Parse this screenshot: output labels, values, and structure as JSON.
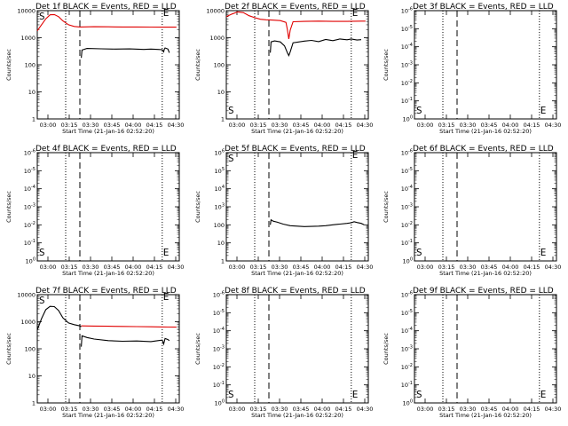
{
  "colors": {
    "events": "#000000",
    "lld": "#e00000",
    "background": "#ffffff",
    "axes": "#000000"
  },
  "chart_data": [
    {
      "type": "line",
      "title": "Det 1f BLACK = Events, RED = LLD",
      "xlabel": "Start Time (21-Jan-16 02:52:20)",
      "ylabel": "Counts/sec",
      "xticks": [
        "03:00",
        "03:15",
        "03:30",
        "03:45",
        "04:00",
        "04:15",
        "04:30"
      ],
      "yscale": "log",
      "ylim": [
        1,
        10000
      ],
      "yticks": [
        "1",
        "10",
        "100",
        "1000",
        "10000"
      ],
      "xlim_minutes": [
        0,
        100
      ],
      "dotted_lines": [
        20,
        88
      ],
      "dashed_line": [
        30
      ],
      "markers": {
        "start": "S",
        "end": "E"
      },
      "series": [
        {
          "color": "red",
          "points": [
            [
              0,
              1800
            ],
            [
              3,
              3000
            ],
            [
              6,
              5000
            ],
            [
              9,
              7000
            ],
            [
              12,
              7200
            ],
            [
              15,
              6000
            ],
            [
              18,
              4200
            ],
            [
              22,
              3000
            ],
            [
              26,
              2600
            ],
            [
              30,
              2500
            ],
            [
              40,
              2550
            ],
            [
              50,
              2530
            ],
            [
              60,
              2500
            ],
            [
              70,
              2500
            ],
            [
              80,
              2480
            ],
            [
              88,
              2450
            ],
            [
              92,
              2450
            ],
            [
              98,
              2450
            ]
          ]
        },
        {
          "color": "black",
          "points": [
            [
              31,
              180
            ],
            [
              31.5,
              350
            ],
            [
              35,
              400
            ],
            [
              45,
              390
            ],
            [
              55,
              380
            ],
            [
              65,
              385
            ],
            [
              75,
              370
            ],
            [
              80,
              380
            ],
            [
              85,
              370
            ],
            [
              88,
              360
            ],
            [
              89,
              300
            ],
            [
              89.5,
              380
            ],
            [
              90,
              420
            ],
            [
              91,
              400
            ],
            [
              92,
              380
            ],
            [
              93,
              280
            ]
          ]
        }
      ]
    },
    {
      "type": "line",
      "title": "Det 2f BLACK = Events, RED = LLD",
      "xlabel": "Start Time (21-Jan-16 02:52:20)",
      "ylabel": "Counts/sec",
      "xticks": [
        "03:00",
        "03:15",
        "03:30",
        "03:45",
        "04:00",
        "04:15",
        "04:30"
      ],
      "yscale": "log",
      "ylim": [
        1,
        10000
      ],
      "yticks": [
        "1",
        "10",
        "100",
        "1000",
        "10000"
      ],
      "xlim_minutes": [
        0,
        100
      ],
      "dotted_lines": [
        20,
        88
      ],
      "dashed_line": [
        30
      ],
      "markers": {
        "start": "S",
        "end": "E"
      },
      "series": [
        {
          "color": "red",
          "points": [
            [
              0,
              6000
            ],
            [
              4,
              7500
            ],
            [
              8,
              9000
            ],
            [
              12,
              8500
            ],
            [
              16,
              6500
            ],
            [
              20,
              5500
            ],
            [
              24,
              4800
            ],
            [
              28,
              4600
            ],
            [
              32,
              4500
            ],
            [
              38,
              4300
            ],
            [
              42,
              3700
            ],
            [
              43,
              2000
            ],
            [
              44,
              900
            ],
            [
              45,
              1900
            ],
            [
              47,
              3900
            ],
            [
              55,
              4000
            ],
            [
              65,
              4100
            ],
            [
              75,
              4000
            ],
            [
              85,
              4000
            ],
            [
              95,
              4100
            ],
            [
              98,
              4100
            ]
          ]
        },
        {
          "color": "black",
          "points": [
            [
              31,
              280
            ],
            [
              31.5,
              700
            ],
            [
              34,
              760
            ],
            [
              38,
              700
            ],
            [
              41,
              500
            ],
            [
              43,
              280
            ],
            [
              44,
              220
            ],
            [
              45,
              300
            ],
            [
              47,
              650
            ],
            [
              55,
              750
            ],
            [
              60,
              800
            ],
            [
              65,
              720
            ],
            [
              70,
              860
            ],
            [
              75,
              780
            ],
            [
              80,
              900
            ],
            [
              85,
              840
            ],
            [
              88,
              900
            ],
            [
              92,
              820
            ],
            [
              95,
              850
            ]
          ]
        }
      ]
    },
    {
      "type": "line",
      "title": "Det 3f BLACK = Events, RED = LLD",
      "xlabel": "Start Time (21-Jan-16 02:52:20)",
      "ylabel": "Counts/sec",
      "xticks": [
        "03:00",
        "03:15",
        "03:30",
        "03:45",
        "04:00",
        "04:15",
        "04:30"
      ],
      "yscale": "log",
      "ylim": [
        1e-06,
        1
      ],
      "yticks": [
        "10^0",
        "10^-1",
        "10^-2",
        "10^-3",
        "10^-4",
        "10^-5",
        "10^-6"
      ],
      "xlim_minutes": [
        0,
        100
      ],
      "dotted_lines": [
        20,
        88
      ],
      "dashed_line": [
        30
      ],
      "markers": {
        "start": "S",
        "end": "E"
      },
      "series": []
    },
    {
      "type": "line",
      "title": "Det 4f BLACK = Events, RED = LLD",
      "xlabel": "Start Time (21-Jan-16 02:52:20)",
      "ylabel": "Counts/sec",
      "xticks": [
        "03:00",
        "03:15",
        "03:30",
        "03:45",
        "04:00",
        "04:15",
        "04:30"
      ],
      "yscale": "log",
      "ylim": [
        1e-06,
        1
      ],
      "yticks": [
        "10^0",
        "10^-1",
        "10^-2",
        "10^-3",
        "10^-4",
        "10^-5",
        "10^-6"
      ],
      "xlim_minutes": [
        0,
        100
      ],
      "dotted_lines": [
        20,
        88
      ],
      "dashed_line": [
        30
      ],
      "markers": {
        "start": "S",
        "end": "E"
      },
      "series": []
    },
    {
      "type": "line",
      "title": "Det 5f BLACK = Events, RED = LLD",
      "xlabel": "Start Time (21-Jan-16 02:52:20)",
      "ylabel": "Counts/sec",
      "xticks": [
        "03:00",
        "03:15",
        "03:30",
        "03:45",
        "04:00",
        "04:15",
        "04:30"
      ],
      "yscale": "log",
      "ylim": [
        1,
        1000000
      ],
      "yticks": [
        "1",
        "10",
        "100",
        "10^3",
        "10^4",
        "10^5",
        "10^6"
      ],
      "xlim_minutes": [
        0,
        100
      ],
      "dotted_lines": [
        20,
        88
      ],
      "dashed_line": [
        30
      ],
      "markers": {
        "start": "S",
        "end": "E"
      },
      "series": [
        {
          "color": "black",
          "points": [
            [
              31,
              100
            ],
            [
              31.5,
              190
            ],
            [
              33,
              160
            ],
            [
              36,
              140
            ],
            [
              40,
              110
            ],
            [
              45,
              90
            ],
            [
              50,
              85
            ],
            [
              55,
              80
            ],
            [
              60,
              82
            ],
            [
              65,
              85
            ],
            [
              70,
              90
            ],
            [
              75,
              100
            ],
            [
              80,
              110
            ],
            [
              85,
              120
            ],
            [
              88,
              130
            ],
            [
              90,
              150
            ],
            [
              92,
              135
            ],
            [
              95,
              120
            ],
            [
              97,
              100
            ]
          ]
        }
      ]
    },
    {
      "type": "line",
      "title": "Det 6f BLACK = Events, RED = LLD",
      "xlabel": "Start Time (21-Jan-16 02:52:20)",
      "ylabel": "Counts/sec",
      "xticks": [
        "03:00",
        "03:15",
        "03:30",
        "03:45",
        "04:00",
        "04:15",
        "04:30"
      ],
      "yscale": "log",
      "ylim": [
        1e-06,
        1
      ],
      "yticks": [
        "10^0",
        "10^-1",
        "10^-2",
        "10^-3",
        "10^-4",
        "10^-5",
        "10^-6"
      ],
      "xlim_minutes": [
        0,
        100
      ],
      "dotted_lines": [
        20,
        88
      ],
      "dashed_line": [
        30
      ],
      "markers": {
        "start": "S",
        "end": "E"
      },
      "series": []
    },
    {
      "type": "line",
      "title": "Det 7f BLACK = Events, RED = LLD",
      "xlabel": "Start Time (21-Jan-16 02:52:20)",
      "ylabel": "Counts/sec",
      "xticks": [
        "03:00",
        "03:15",
        "03:30",
        "03:45",
        "04:00",
        "04:15",
        "04:30"
      ],
      "yscale": "log",
      "ylim": [
        1,
        10000
      ],
      "yticks": [
        "1",
        "10",
        "100",
        "1000",
        "10000"
      ],
      "xlim_minutes": [
        0,
        100
      ],
      "dotted_lines": [
        20,
        88
      ],
      "dashed_line": [
        30
      ],
      "markers": {
        "start": "S",
        "end": "E"
      },
      "series": [
        {
          "color": "black",
          "points": [
            [
              0,
              500
            ],
            [
              3,
              1300
            ],
            [
              6,
              2800
            ],
            [
              9,
              3700
            ],
            [
              12,
              3600
            ],
            [
              15,
              2600
            ],
            [
              18,
              1400
            ],
            [
              22,
              900
            ],
            [
              26,
              780
            ],
            [
              30,
              700
            ],
            [
              31,
              650
            ]
          ]
        },
        {
          "color": "red",
          "points": [
            [
              31,
              700
            ],
            [
              40,
              690
            ],
            [
              50,
              680
            ],
            [
              60,
              670
            ],
            [
              70,
              660
            ],
            [
              80,
              650
            ],
            [
              88,
              640
            ],
            [
              92,
              635
            ],
            [
              98,
              630
            ]
          ]
        },
        {
          "color": "black",
          "points": [
            [
              31,
              120
            ],
            [
              31.5,
              300
            ],
            [
              35,
              260
            ],
            [
              40,
              230
            ],
            [
              50,
              200
            ],
            [
              60,
              190
            ],
            [
              70,
              195
            ],
            [
              80,
              185
            ],
            [
              85,
              200
            ],
            [
              88,
              210
            ],
            [
              89,
              150
            ],
            [
              90,
              240
            ],
            [
              92,
              220
            ],
            [
              93,
              200
            ]
          ]
        }
      ]
    },
    {
      "type": "line",
      "title": "Det 8f BLACK = Events, RED = LLD",
      "xlabel": "Start Time (21-Jan-16 02:52:20)",
      "ylabel": "Counts/sec",
      "xticks": [
        "03:00",
        "03:15",
        "03:30",
        "03:45",
        "04:00",
        "04:15",
        "04:30"
      ],
      "yscale": "log",
      "ylim": [
        1e-06,
        1
      ],
      "yticks": [
        "10^0",
        "10^-1",
        "10^-2",
        "10^-3",
        "10^-4",
        "10^-5",
        "10^-6"
      ],
      "xlim_minutes": [
        0,
        100
      ],
      "dotted_lines": [
        20,
        88
      ],
      "dashed_line": [
        30
      ],
      "markers": {
        "start": "S",
        "end": "E"
      },
      "series": []
    },
    {
      "type": "line",
      "title": "Det 9f BLACK = Events, RED = LLD",
      "xlabel": "Start Time (21-Jan-16 02:52:20)",
      "ylabel": "Counts/sec",
      "xticks": [
        "03:00",
        "03:15",
        "03:30",
        "03:45",
        "04:00",
        "04:15",
        "04:30"
      ],
      "yscale": "log",
      "ylim": [
        1e-06,
        1
      ],
      "yticks": [
        "10^0",
        "10^-1",
        "10^-2",
        "10^-3",
        "10^-4",
        "10^-5",
        "10^-6"
      ],
      "xlim_minutes": [
        0,
        100
      ],
      "dotted_lines": [
        20,
        88
      ],
      "dashed_line": [
        30
      ],
      "markers": {
        "start": "S",
        "end": "E"
      },
      "series": []
    }
  ]
}
